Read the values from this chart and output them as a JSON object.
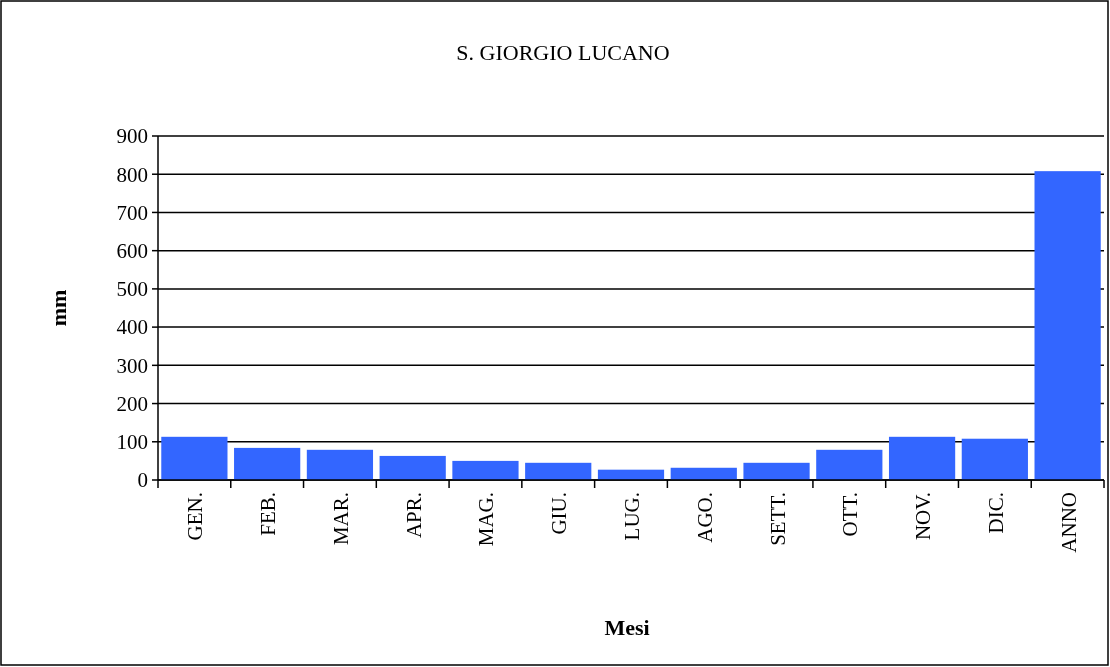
{
  "chart_data": {
    "type": "bar",
    "title": "S. GIORGIO LUCANO",
    "xlabel": "Mesi",
    "ylabel": "mm",
    "categories": [
      "GEN.",
      "FEB.",
      "MAR.",
      "APR.",
      "MAG.",
      "GIU.",
      "LUG.",
      "AGO.",
      "SETT.",
      "OTT.",
      "NOV.",
      "DIC.",
      "ANNO"
    ],
    "values": [
      113,
      84,
      79,
      63,
      50,
      45,
      27,
      32,
      45,
      79,
      113,
      108,
      808
    ],
    "color": "#3366ff",
    "ylim": [
      0,
      900
    ],
    "yticks": [
      0,
      100,
      200,
      300,
      400,
      500,
      600,
      700,
      800,
      900
    ],
    "grid": "y"
  }
}
